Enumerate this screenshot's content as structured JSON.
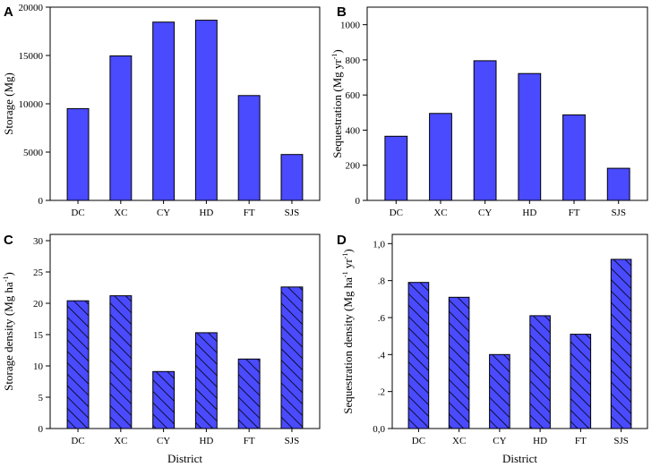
{
  "bar_color": "#4a4aff",
  "bar_stroke": "#000000",
  "chart_data": [
    {
      "panel": "A",
      "type": "bar",
      "fill": "solid",
      "categories": [
        "DC",
        "XC",
        "CY",
        "HD",
        "FT",
        "SJS"
      ],
      "values": [
        9500,
        14950,
        18450,
        18650,
        10850,
        4750
      ],
      "ylabel": "Storage (Mg)",
      "xlabel": "",
      "ylim": [
        0,
        20000
      ],
      "yticks": [
        0,
        5000,
        10000,
        15000,
        20000
      ],
      "ytick_labels": [
        "0",
        "5000",
        "10000",
        "15000",
        "20000"
      ]
    },
    {
      "panel": "B",
      "type": "bar",
      "fill": "solid",
      "categories": [
        "DC",
        "XC",
        "CY",
        "HD",
        "FT",
        "SJS"
      ],
      "values": [
        365,
        495,
        795,
        722,
        487,
        183
      ],
      "ylabel": "Sequestration (Mg yr",
      "ylabel_sup": "-1",
      "ylabel_end": ")",
      "xlabel": "",
      "ylim": [
        0,
        1100
      ],
      "yticks": [
        0,
        200,
        400,
        600,
        800,
        1000
      ],
      "ytick_labels": [
        "0",
        "200",
        "400",
        "600",
        "800",
        "1000"
      ]
    },
    {
      "panel": "C",
      "type": "bar",
      "fill": "hatched",
      "categories": [
        "DC",
        "XC",
        "CY",
        "HD",
        "FT",
        "SJS"
      ],
      "values": [
        20.4,
        21.2,
        9.1,
        15.3,
        11.1,
        22.6
      ],
      "ylabel": "Storage density (Mg ha",
      "ylabel_sup": "-1",
      "ylabel_end": ")",
      "xlabel": "District",
      "ylim": [
        0,
        31
      ],
      "yticks": [
        0,
        5,
        10,
        15,
        20,
        25,
        30
      ],
      "ytick_labels": [
        "0",
        "5",
        "10",
        "15",
        "20",
        "25",
        "30"
      ]
    },
    {
      "panel": "D",
      "type": "bar",
      "fill": "hatched",
      "categories": [
        "DC",
        "XC",
        "CY",
        "HD",
        "FT",
        "SJS"
      ],
      "values": [
        0.79,
        0.71,
        0.4,
        0.61,
        0.51,
        0.915
      ],
      "ylabel": "Sequestration density (Mg ha",
      "ylabel_sup": "-1",
      "ylabel_mid": " yr",
      "ylabel_sup2": "-1",
      "ylabel_end": ")",
      "xlabel": "District",
      "ylim": [
        0,
        1.05
      ],
      "yticks": [
        0,
        0.2,
        0.4,
        0.6,
        0.8,
        1.0
      ],
      "ytick_labels": [
        "0,0",
        ".2",
        ".4",
        ".6",
        ".8",
        "1,0"
      ]
    }
  ]
}
